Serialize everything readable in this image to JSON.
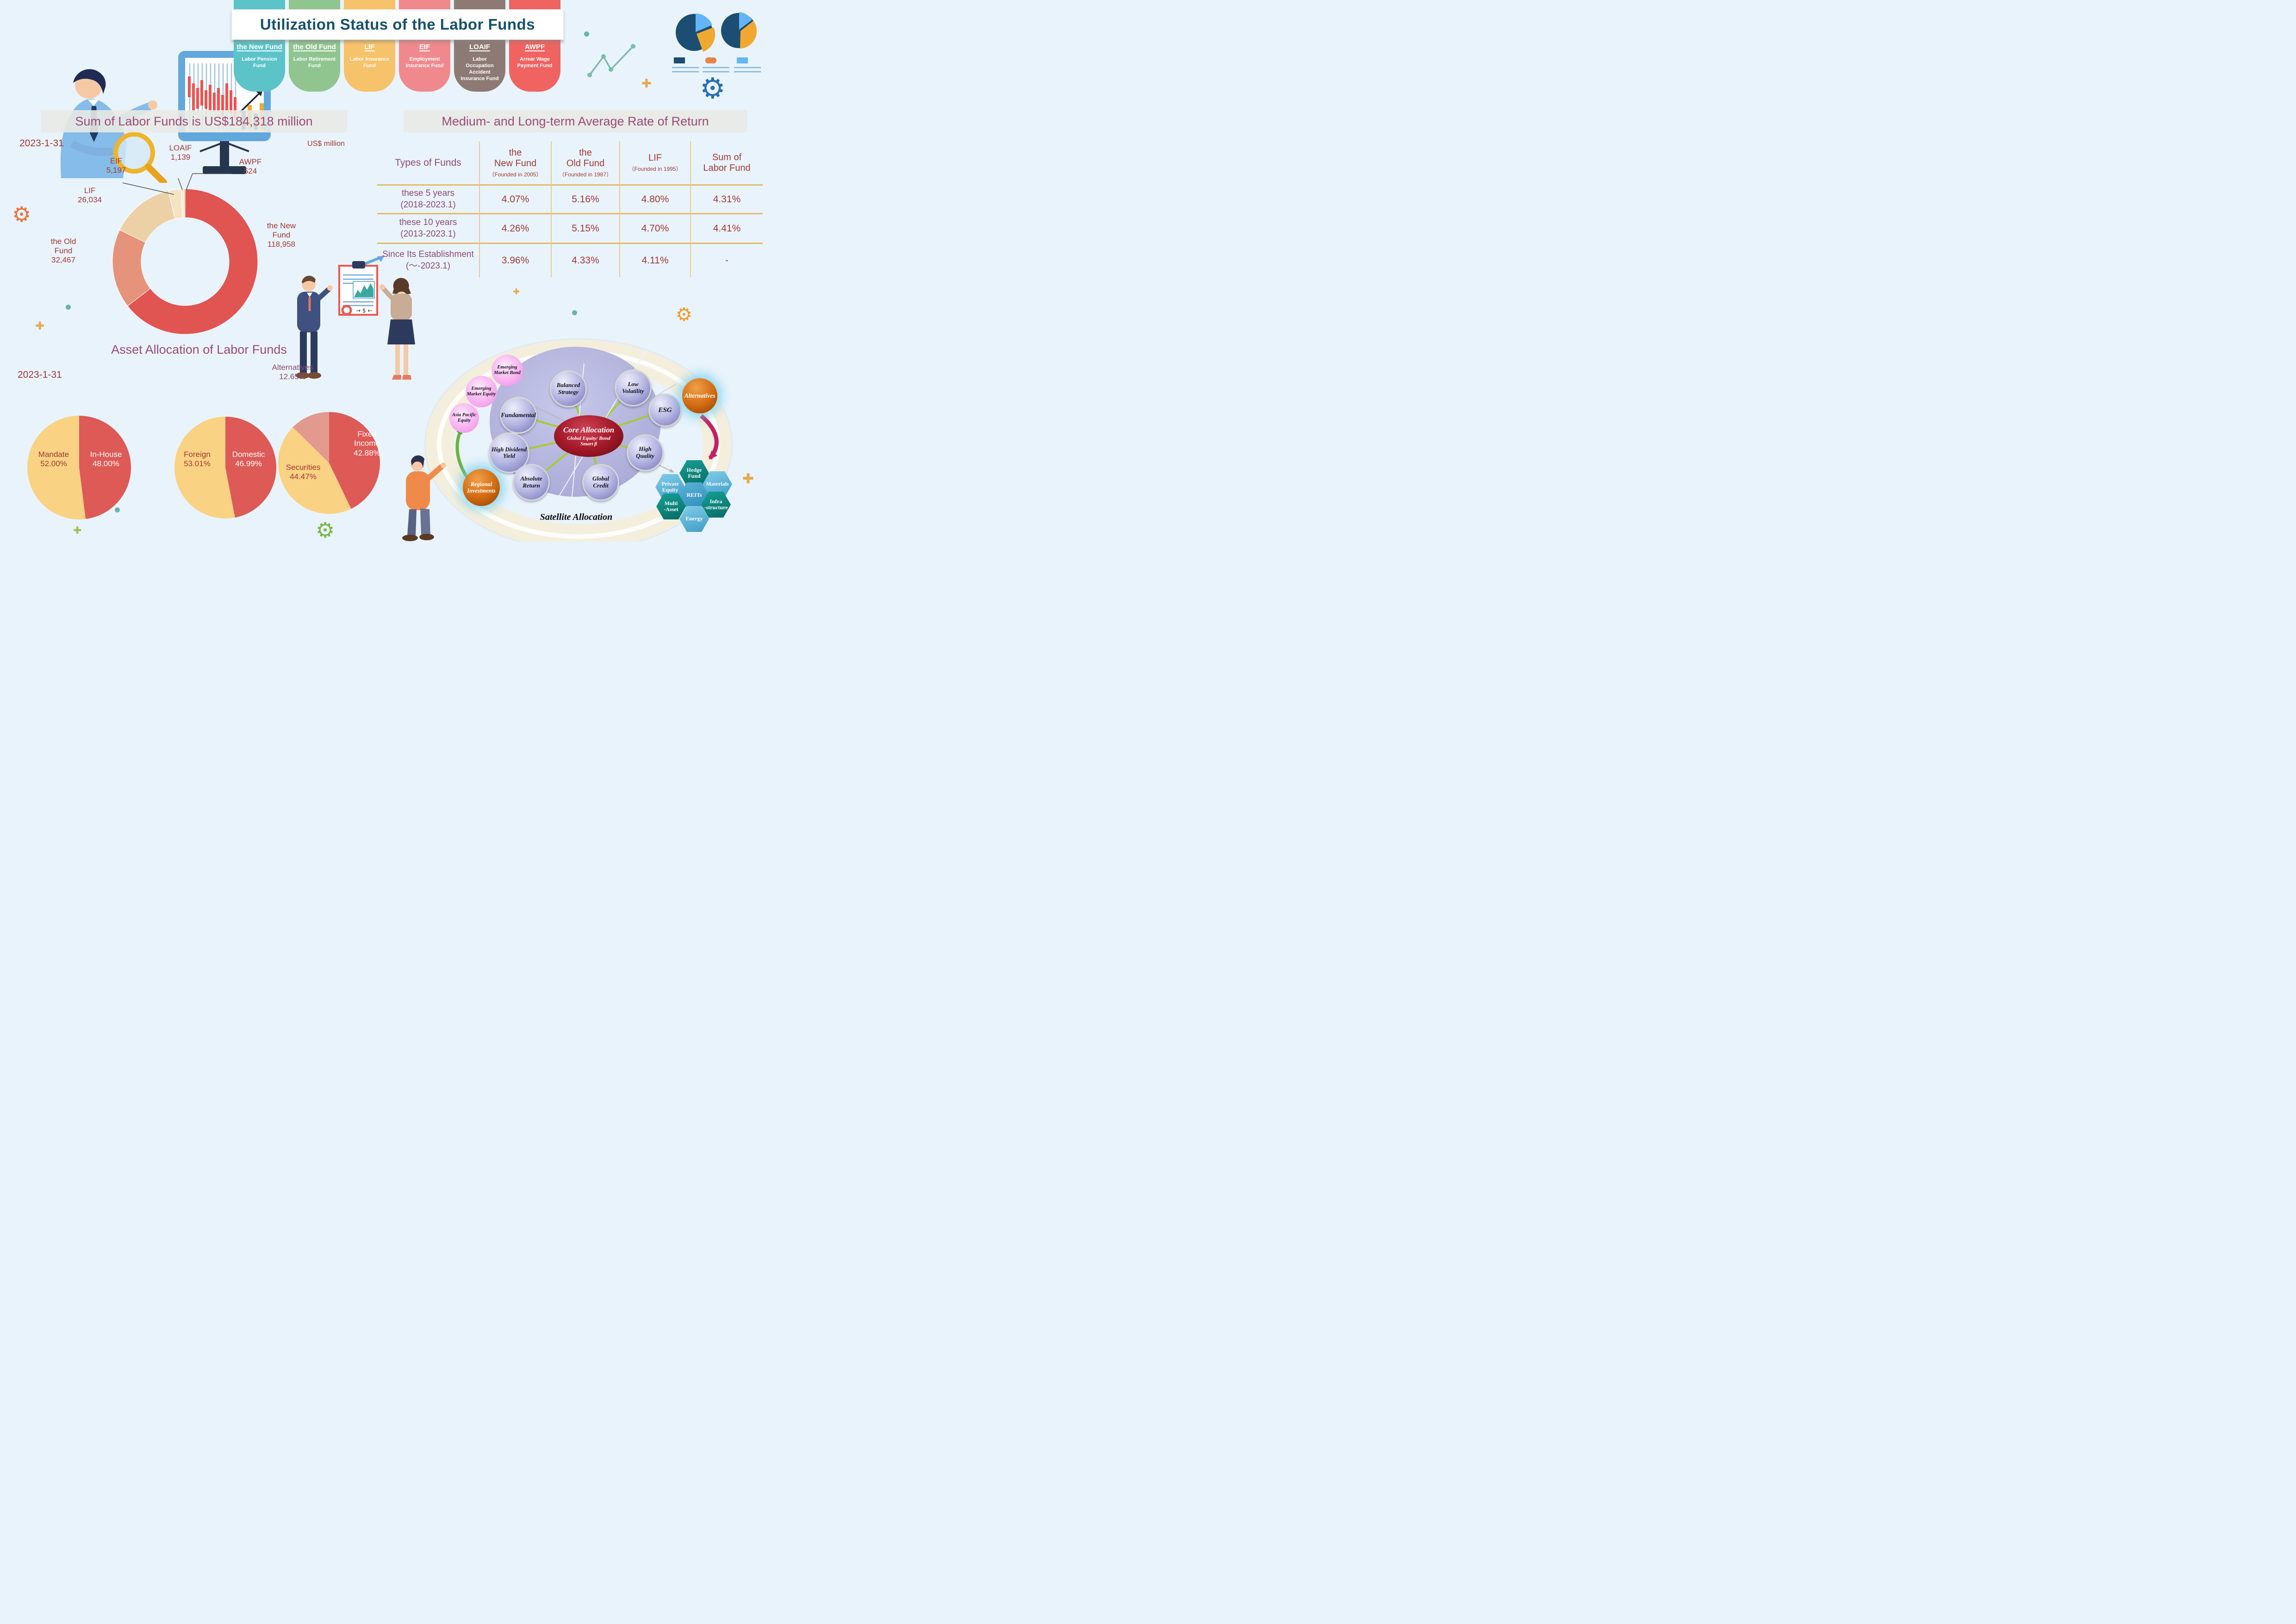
{
  "title": "Utilization Status of the Labor Funds",
  "tabs": [
    {
      "abbr": "the New Fund",
      "name": "Labor Pension Fund",
      "color": "#5cc3c9"
    },
    {
      "abbr": "the Old Fund",
      "name": "Labor Retirement Fund",
      "color": "#90c590"
    },
    {
      "abbr": "LIF",
      "name": "Labor Insurance Fund",
      "color": "#f6c26a"
    },
    {
      "abbr": "EIF",
      "name": "Employment Insurance Fund",
      "color": "#f0898d"
    },
    {
      "abbr": "LOAIF",
      "name": "Labor Occupation Accident Insurance Fund",
      "color": "#8e7a74"
    },
    {
      "abbr": "AWPF",
      "name": "Arrear Wage Payment Fund",
      "color": "#ef6361"
    }
  ],
  "sum_section": {
    "heading": "Sum of Labor Funds is US$184,318 million",
    "date": "2023-1-31",
    "unit": "US$ million",
    "donut_labels": [
      {
        "name": "the New\nFund",
        "value": "118,958"
      },
      {
        "name": "the Old\nFund",
        "value": "32,467"
      },
      {
        "name": "LIF",
        "value": "26,034"
      },
      {
        "name": "EIF",
        "value": "5,197"
      },
      {
        "name": "LOAIF",
        "value": "1,139"
      },
      {
        "name": "AWPF",
        "value": "524"
      }
    ]
  },
  "returns_section": {
    "heading": "Medium- and Long-term Average Rate of Return",
    "columns": [
      {
        "title": "Types of Funds",
        "sub": ""
      },
      {
        "title": "the\nNew Fund",
        "sub": "（Founded in 2005）"
      },
      {
        "title": "the\nOld Fund",
        "sub": "（Founded in 1987）"
      },
      {
        "title": "LIF",
        "sub": "（Founded in 1995）"
      },
      {
        "title": "Sum of\nLabor Fund",
        "sub": ""
      }
    ],
    "rows": [
      {
        "label": "these 5 years\n(2018-2023.1)",
        "values": [
          "4.07%",
          "5.16%",
          "4.80%",
          "4.31%"
        ]
      },
      {
        "label": "these 10 years\n(2013-2023.1)",
        "values": [
          "4.26%",
          "5.15%",
          "4.70%",
          "4.41%"
        ]
      },
      {
        "label": "Since Its Establishment\n(～-2023.1)",
        "values": [
          "3.96%",
          "4.33%",
          "4.11%",
          "-"
        ]
      }
    ]
  },
  "allocation_section": {
    "heading": "Asset Allocation of Labor Funds",
    "date": "2023-1-31",
    "pies": [
      {
        "slices": [
          {
            "label": "In-House",
            "value": "48.00%"
          },
          {
            "label": "Mandate",
            "value": "52.00%"
          }
        ]
      },
      {
        "slices": [
          {
            "label": "Domestic",
            "value": "46.99%"
          },
          {
            "label": "Foreign",
            "value": "53.01%"
          }
        ]
      },
      {
        "slices": [
          {
            "label": "Fixed Income",
            "value": "42.88%"
          },
          {
            "label": "Securities",
            "value": "44.47%"
          },
          {
            "label": "Alternatives",
            "value": "12.65%"
          }
        ]
      }
    ]
  },
  "core_diagram": {
    "core_title": "Core Allocation",
    "core_sub1": "Global Equity/ Bond",
    "core_sub2": "Smart β",
    "caption": "Satellite Allocation",
    "purple_nodes": [
      "Balanced Strategy",
      "Low Volatility",
      "ESG",
      "Fundamental",
      "High Dividend Yield",
      "High Quality",
      "Absolute Return",
      "Global Credit"
    ],
    "pink_nodes": [
      "Emerging Market Bond",
      "Emerging Market Equity",
      "Asia Pacific Equity"
    ],
    "orange_nodes": [
      "Alternatives",
      "Regional Investments"
    ],
    "hex_nodes": [
      {
        "lines": [
          "Hedge",
          "Fund"
        ]
      },
      {
        "lines": [
          "Private",
          "Equity"
        ]
      },
      {
        "lines": [
          "Materials"
        ]
      },
      {
        "lines": [
          "REITs"
        ]
      },
      {
        "lines": [
          "Multi",
          "-Asset"
        ]
      },
      {
        "lines": [
          "Infra",
          "-structure"
        ]
      },
      {
        "lines": [
          "Energy"
        ]
      }
    ]
  },
  "decor": {
    "gear_glyph": "⚙",
    "plus_glyph": "✚"
  },
  "chart_data": [
    {
      "type": "pie",
      "subtype": "donut",
      "title": "Sum of Labor Funds is US$184,318 million",
      "date": "2023-1-31",
      "unit": "US$ million",
      "total": 184318,
      "labels": [
        "the New Fund",
        "the Old Fund",
        "LIF",
        "EIF",
        "LOAIF",
        "AWPF"
      ],
      "values": [
        118958,
        32467,
        26034,
        5197,
        1139,
        524
      ],
      "colors": [
        "#e05452",
        "#e6937c",
        "#ecd0a6",
        "#f5e4c2",
        "#fbe9d2",
        "#f6bd92"
      ]
    },
    {
      "type": "pie",
      "title": "Asset Allocation: Mandate vs In-House",
      "unit": "%",
      "labels": [
        "In-House",
        "Mandate"
      ],
      "values": [
        48.0,
        52.0
      ],
      "colors": [
        "#dd5a56",
        "#fad283"
      ]
    },
    {
      "type": "pie",
      "title": "Asset Allocation: Domestic vs Foreign",
      "unit": "%",
      "labels": [
        "Domestic",
        "Foreign"
      ],
      "values": [
        46.99,
        53.01
      ],
      "colors": [
        "#dd5a56",
        "#fad283"
      ]
    },
    {
      "type": "pie",
      "title": "Asset Allocation: Asset Classes",
      "unit": "%",
      "labels": [
        "Fixed Income",
        "Securities",
        "Alternatives"
      ],
      "values": [
        42.88,
        44.47,
        12.65
      ],
      "colors": [
        "#dd5a56",
        "#fad283",
        "#e29a8e"
      ]
    },
    {
      "type": "table",
      "title": "Medium- and Long-term Average Rate of Return",
      "columns": [
        "Types of Funds",
        "the New Fund (Founded in 2005)",
        "the Old Fund (Founded in 1987)",
        "LIF (Founded in 1995)",
        "Sum of Labor Fund"
      ],
      "rows": [
        [
          "these 5 years (2018-2023.1)",
          "4.07%",
          "5.16%",
          "4.80%",
          "4.31%"
        ],
        [
          "these 10 years (2013-2023.1)",
          "4.26%",
          "5.15%",
          "4.70%",
          "4.41%"
        ],
        [
          "Since Its Establishment (～-2023.1)",
          "3.96%",
          "4.33%",
          "4.11%",
          "-"
        ]
      ]
    }
  ]
}
